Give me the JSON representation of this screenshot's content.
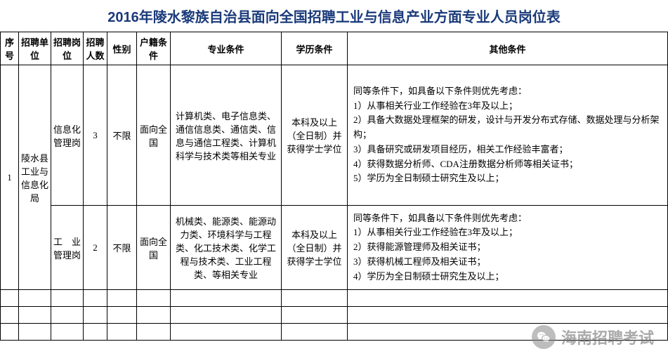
{
  "title": "2016年陵水黎族自治县面向全国招聘工业与信息产业方面专业人员岗位表",
  "columns": [
    "序号",
    "招聘单位",
    "招聘岗位",
    "招聘人数",
    "性别",
    "户籍条件",
    "专业条件",
    "学历条件",
    "其他条件"
  ],
  "rows": [
    {
      "seq": "1",
      "unit": "陵水县工业与信息化局",
      "post": "信息化管理岗",
      "num": "3",
      "gender": "不限",
      "hukou": "面向全国",
      "major": "计算机类、电子信息类、通信信息类、通信类、信息与通信工程类、计算机科学与技术类等相关专业",
      "edu": "本科及以上（全日制）并获得学士学位",
      "other": "同等条件下，如具备以下条件则优先考虑：\n1）从事相关行业工作经验在3年及以上；\n2）具备大数据处理框架的研发，设计与开发分布式存储、数据处理与分析架构；\n3）具备研究或研发项目经历，相关工作经验丰富者；\n4）获得数据分析师、CDA注册数据分析师等相关证书；\n5）学历为全日制硕士研究生及以上；"
    },
    {
      "post": "工　业管理岗",
      "num": "2",
      "gender": "不限",
      "hukou": "面向全国",
      "major": "机械类、能源类、能源动力类、环境科学与工程类、化工技术类、化学工程与技术类、工业工程类、等相关专业",
      "edu": "本科及以上（全日制）并获得学士学位",
      "other": "同等条件下，如具备以下条件则优先考虑：\n1）从事相关行业工作经验在3年及以上；\n2）获得能源管理师及相关证书；\n3）获得机械工程师及相关证书；\n4）学历为全日制硕士研究生及以上；"
    }
  ],
  "watermark": {
    "text": "海南招聘考试"
  },
  "colors": {
    "title": "#1a3a7a",
    "border": "#000000",
    "text": "#000000",
    "background": "#ffffff",
    "watermark_text": "#666666",
    "watermark_icon_bg": "#888888"
  },
  "typography": {
    "title_fontsize": 20,
    "cell_fontsize": 13,
    "watermark_fontsize": 22
  }
}
